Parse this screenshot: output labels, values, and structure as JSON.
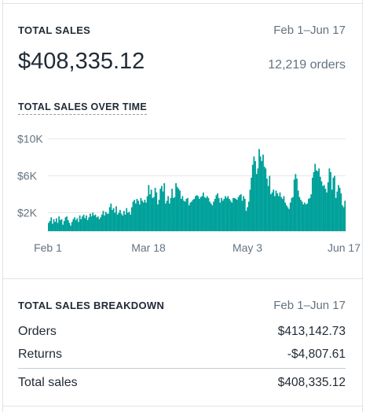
{
  "summary": {
    "title": "TOTAL SALES",
    "date_range": "Feb 1–Jun 17",
    "amount": "$408,335.12",
    "orders": "12,219 orders"
  },
  "over_time": {
    "title": "TOTAL SALES OVER TIME"
  },
  "chart_data": {
    "type": "bar",
    "title": "TOTAL SALES OVER TIME",
    "x_tick_labels": [
      "Feb 1",
      "Mar 18",
      "May 3",
      "Jun 17"
    ],
    "y_tick_labels": [
      "$2K",
      "$6K",
      "$10K"
    ],
    "y_ticks": [
      2000,
      6000,
      10000
    ],
    "ylim": [
      0,
      11000
    ],
    "grid": true,
    "color": "#00a19a",
    "values": [
      900,
      1100,
      1500,
      800,
      1300,
      1000,
      1400,
      900,
      1600,
      1200,
      1300,
      700,
      1100,
      1500,
      1600,
      1200,
      900,
      600,
      1000,
      1300,
      1500,
      1200,
      1400,
      1000,
      1700,
      1300,
      1600,
      1800,
      1400,
      1700,
      1200,
      1500,
      1900,
      1600,
      2000,
      1700,
      1800,
      1500,
      1600,
      1300,
      1500,
      1800,
      2200,
      1700,
      2100,
      1900,
      1900,
      2600,
      3000,
      2300,
      2500,
      2000,
      2700,
      1800,
      2000,
      2300,
      1900,
      1700,
      2200,
      1800,
      2500,
      2000,
      2100,
      1800,
      2600,
      3200,
      3400,
      3000,
      3500,
      3300,
      2900,
      3600,
      3300,
      3100,
      3400,
      3100,
      3800,
      5000,
      4000,
      4500,
      3600,
      3700,
      4700,
      4200,
      2900,
      3400,
      4600,
      4900,
      4300,
      5200,
      3000,
      3300,
      3800,
      3000,
      3600,
      4600,
      3600,
      3700,
      5200,
      4800,
      4600,
      4400,
      3500,
      3800,
      3300,
      3200,
      3500,
      3600,
      2800,
      3100,
      3200,
      3400,
      3500,
      3800,
      3900,
      3800,
      3500,
      3700,
      3800,
      4200,
      3700,
      3600,
      3800,
      3600,
      3200,
      3000,
      2800,
      3200,
      3500,
      3900,
      4100,
      3600,
      3100,
      3600,
      3300,
      3500,
      3800,
      3600,
      3800,
      3500,
      3300,
      3100,
      3600,
      3600,
      3500,
      3400,
      3700,
      3900,
      4000,
      3300,
      3800,
      3500,
      2200,
      2600,
      3200,
      4500,
      5800,
      7200,
      8100,
      7600,
      6200,
      6800,
      8900,
      8100,
      7600,
      8300,
      7000,
      6800,
      5700,
      4900,
      6000,
      4000,
      4200,
      4500,
      3800,
      4400,
      4100,
      3800,
      4200,
      3700,
      3500,
      3800,
      3100,
      2800,
      2600,
      2400,
      3100,
      3600,
      3700,
      5600,
      6200,
      5700,
      4400,
      3700,
      3400,
      3200,
      2900,
      3100,
      2900,
      3000,
      3500,
      3600,
      4000,
      5800,
      6400,
      7300,
      6600,
      6500,
      6800,
      5900,
      5400,
      4900,
      5000,
      4600,
      4200,
      5300,
      6800,
      6400,
      4500,
      5800,
      6000,
      3600,
      4300,
      5000,
      4700,
      4100,
      2800,
      2600,
      3300
    ]
  },
  "breakdown": {
    "title": "TOTAL SALES BREAKDOWN",
    "date_range": "Feb 1–Jun 17",
    "rows": [
      {
        "label": "Orders",
        "value": "$413,142.73"
      },
      {
        "label": "Returns",
        "value": "-$4,807.61"
      }
    ],
    "total": {
      "label": "Total sales",
      "value": "$408,335.12"
    }
  }
}
